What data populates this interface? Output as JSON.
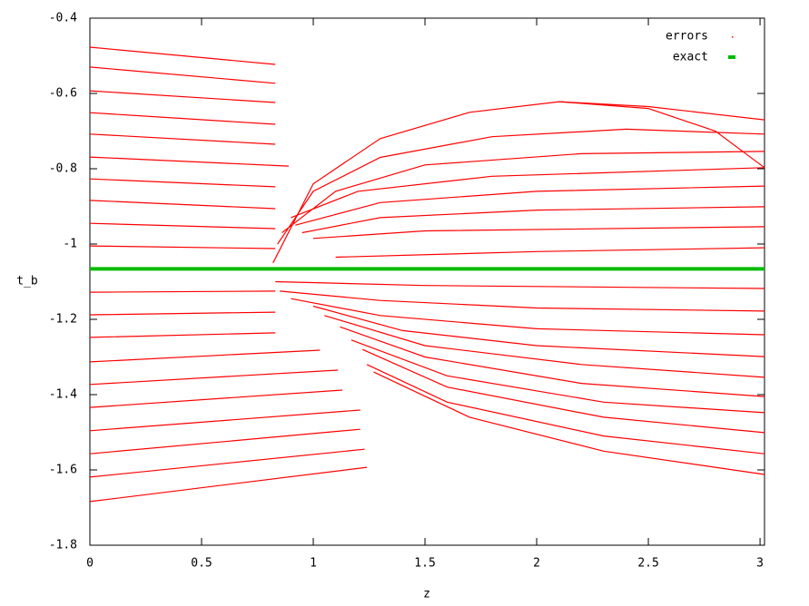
{
  "chart_data": {
    "type": "line",
    "xlabel": "z",
    "ylabel": "t_b",
    "xlim": [
      0,
      3.02
    ],
    "ylim": [
      -1.8,
      -0.4
    ],
    "xticks": [
      0,
      0.5,
      1,
      1.5,
      2,
      2.5,
      3
    ],
    "yticks": [
      -1.8,
      -1.6,
      -1.4,
      -1.2,
      -1,
      -0.8,
      -0.6,
      -0.4
    ],
    "legend": "top-right",
    "series": [
      {
        "name": "errors",
        "color": "#ff0000",
        "x": [
          0,
          0.83,
          null,
          0,
          0.83,
          null,
          0,
          0.83,
          null,
          0,
          0.83,
          null,
          0,
          0.83,
          null,
          0,
          0.89,
          null,
          0,
          0.83,
          null,
          0,
          0.83,
          null,
          0,
          0.83,
          null,
          0,
          0.83,
          null,
          0,
          0.83,
          null,
          0,
          0.83,
          null,
          0,
          0.83,
          null,
          0,
          1.03,
          null,
          0,
          1.11,
          null,
          0,
          1.13,
          null,
          0,
          1.21,
          null,
          0,
          1.21,
          null,
          0,
          1.23,
          null,
          0,
          1.24,
          null,
          0.82,
          1.0,
          1.3,
          1.7,
          2.1,
          2.5,
          3.02,
          null,
          2.1,
          2.5,
          2.8,
          3.02,
          null,
          0.84,
          1.0,
          1.3,
          1.8,
          2.4,
          3.02,
          null,
          0.86,
          1.1,
          1.5,
          2.2,
          3.02,
          null,
          0.9,
          1.2,
          1.8,
          3.02,
          null,
          0.92,
          1.3,
          2,
          3.02,
          null,
          0.95,
          1.3,
          2,
          3.02,
          null,
          1.0,
          1.5,
          3.02,
          null,
          1.1,
          2,
          3.02,
          null,
          0.83,
          1.5,
          3.02,
          null,
          0.85,
          1.3,
          2,
          3.02,
          null,
          0.9,
          1.3,
          2,
          3.02,
          null,
          1.0,
          1.4,
          2,
          3.02,
          null,
          1.05,
          1.5,
          2.2,
          3.02,
          null,
          1.12,
          1.5,
          2.2,
          3.02,
          null,
          1.17,
          1.6,
          2.3,
          3.02,
          null,
          1.22,
          1.6,
          2.3,
          3.02,
          null,
          1.24,
          1.6,
          2.3,
          3.02,
          null,
          1.27,
          1.7,
          2.3,
          3.02
        ],
        "values": [
          -0.477,
          -0.523,
          null,
          -0.53,
          -0.573,
          null,
          -0.593,
          -0.624,
          null,
          -0.651,
          -0.682,
          null,
          -0.708,
          -0.735,
          null,
          -0.769,
          -0.793,
          null,
          -0.827,
          -0.848,
          null,
          -0.884,
          -0.906,
          null,
          -0.945,
          -0.959,
          null,
          -1.005,
          -1.012,
          null,
          -1.128,
          -1.125,
          null,
          -1.188,
          -1.181,
          null,
          -1.248,
          -1.236,
          null,
          -1.313,
          -1.282,
          null,
          -1.373,
          -1.335,
          null,
          -1.434,
          -1.388,
          null,
          -1.496,
          -1.441,
          null,
          -1.557,
          -1.492,
          null,
          -1.619,
          -1.545,
          null,
          -1.684,
          -1.593,
          null,
          -1.05,
          -0.84,
          -0.72,
          -0.65,
          -0.622,
          -0.635,
          -0.67,
          null,
          -0.622,
          -0.64,
          -0.7,
          -0.797,
          null,
          -1.0,
          -0.86,
          -0.77,
          -0.715,
          -0.695,
          -0.708,
          null,
          -0.97,
          -0.86,
          -0.79,
          -0.76,
          -0.754,
          null,
          -0.93,
          -0.86,
          -0.82,
          -0.797,
          null,
          -0.95,
          -0.89,
          -0.86,
          -0.846,
          null,
          -0.97,
          -0.93,
          -0.91,
          -0.901,
          null,
          -0.985,
          -0.965,
          -0.954,
          null,
          -1.035,
          -1.02,
          -1.01,
          null,
          -1.1,
          -1.11,
          -1.118,
          null,
          -1.125,
          -1.15,
          -1.17,
          -1.178,
          null,
          -1.145,
          -1.19,
          -1.225,
          -1.241,
          null,
          -1.165,
          -1.23,
          -1.27,
          -1.299,
          null,
          -1.19,
          -1.27,
          -1.32,
          -1.354,
          null,
          -1.22,
          -1.3,
          -1.37,
          -1.405,
          null,
          -1.255,
          -1.35,
          -1.42,
          -1.448,
          null,
          -1.28,
          -1.38,
          -1.46,
          -1.501,
          null,
          -1.32,
          -1.42,
          -1.51,
          -1.557,
          null,
          -1.34,
          -1.46,
          -1.55,
          -1.612
        ]
      },
      {
        "name": "exact",
        "color": "#00bb00",
        "x": [
          0,
          3.02
        ],
        "values": [
          -1.066,
          -1.066
        ]
      }
    ]
  }
}
